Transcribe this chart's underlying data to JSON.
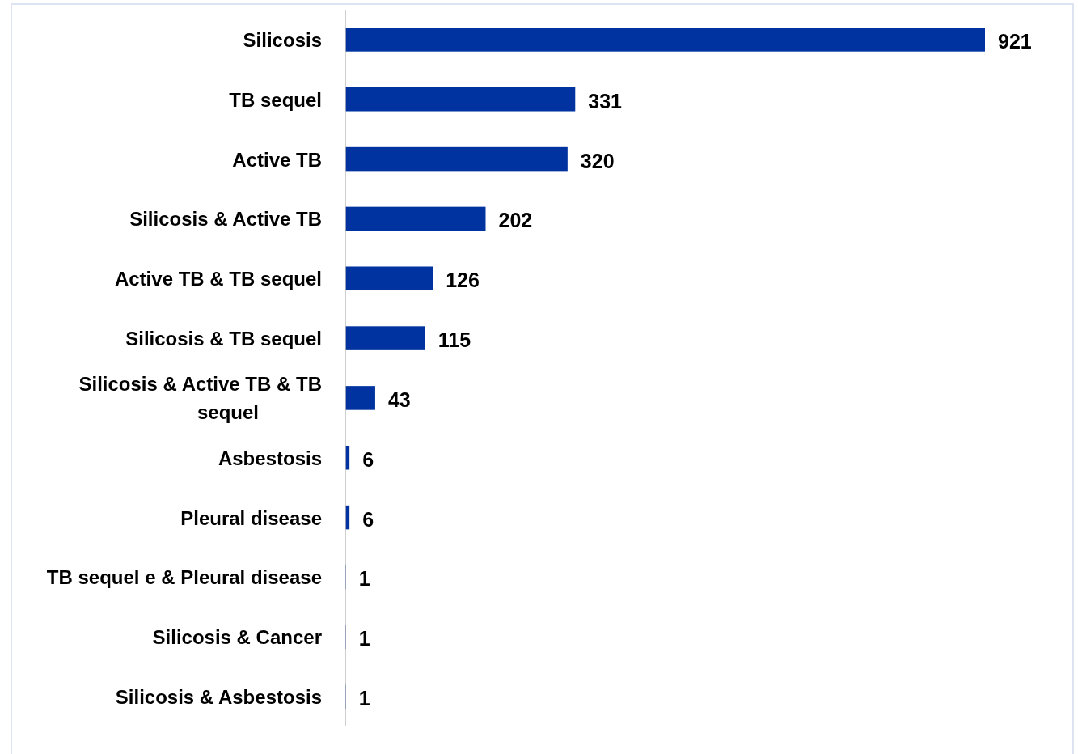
{
  "chart_data": {
    "type": "bar",
    "orientation": "horizontal",
    "categories": [
      "Silicosis",
      "TB sequel",
      "Active TB",
      "Silicosis & Active TB",
      "Active TB & TB sequel",
      "Silicosis & TB sequel",
      "Silicosis & Active TB  & TB sequel",
      "Asbestosis",
      "Pleural disease",
      "TB sequel e & Pleural disease",
      "Silicosis & Cancer",
      "Silicosis & Asbestosis"
    ],
    "values": [
      921,
      331,
      320,
      202,
      126,
      115,
      43,
      6,
      6,
      1,
      1,
      1
    ],
    "color": "#0033a0",
    "data_labels": true
  }
}
